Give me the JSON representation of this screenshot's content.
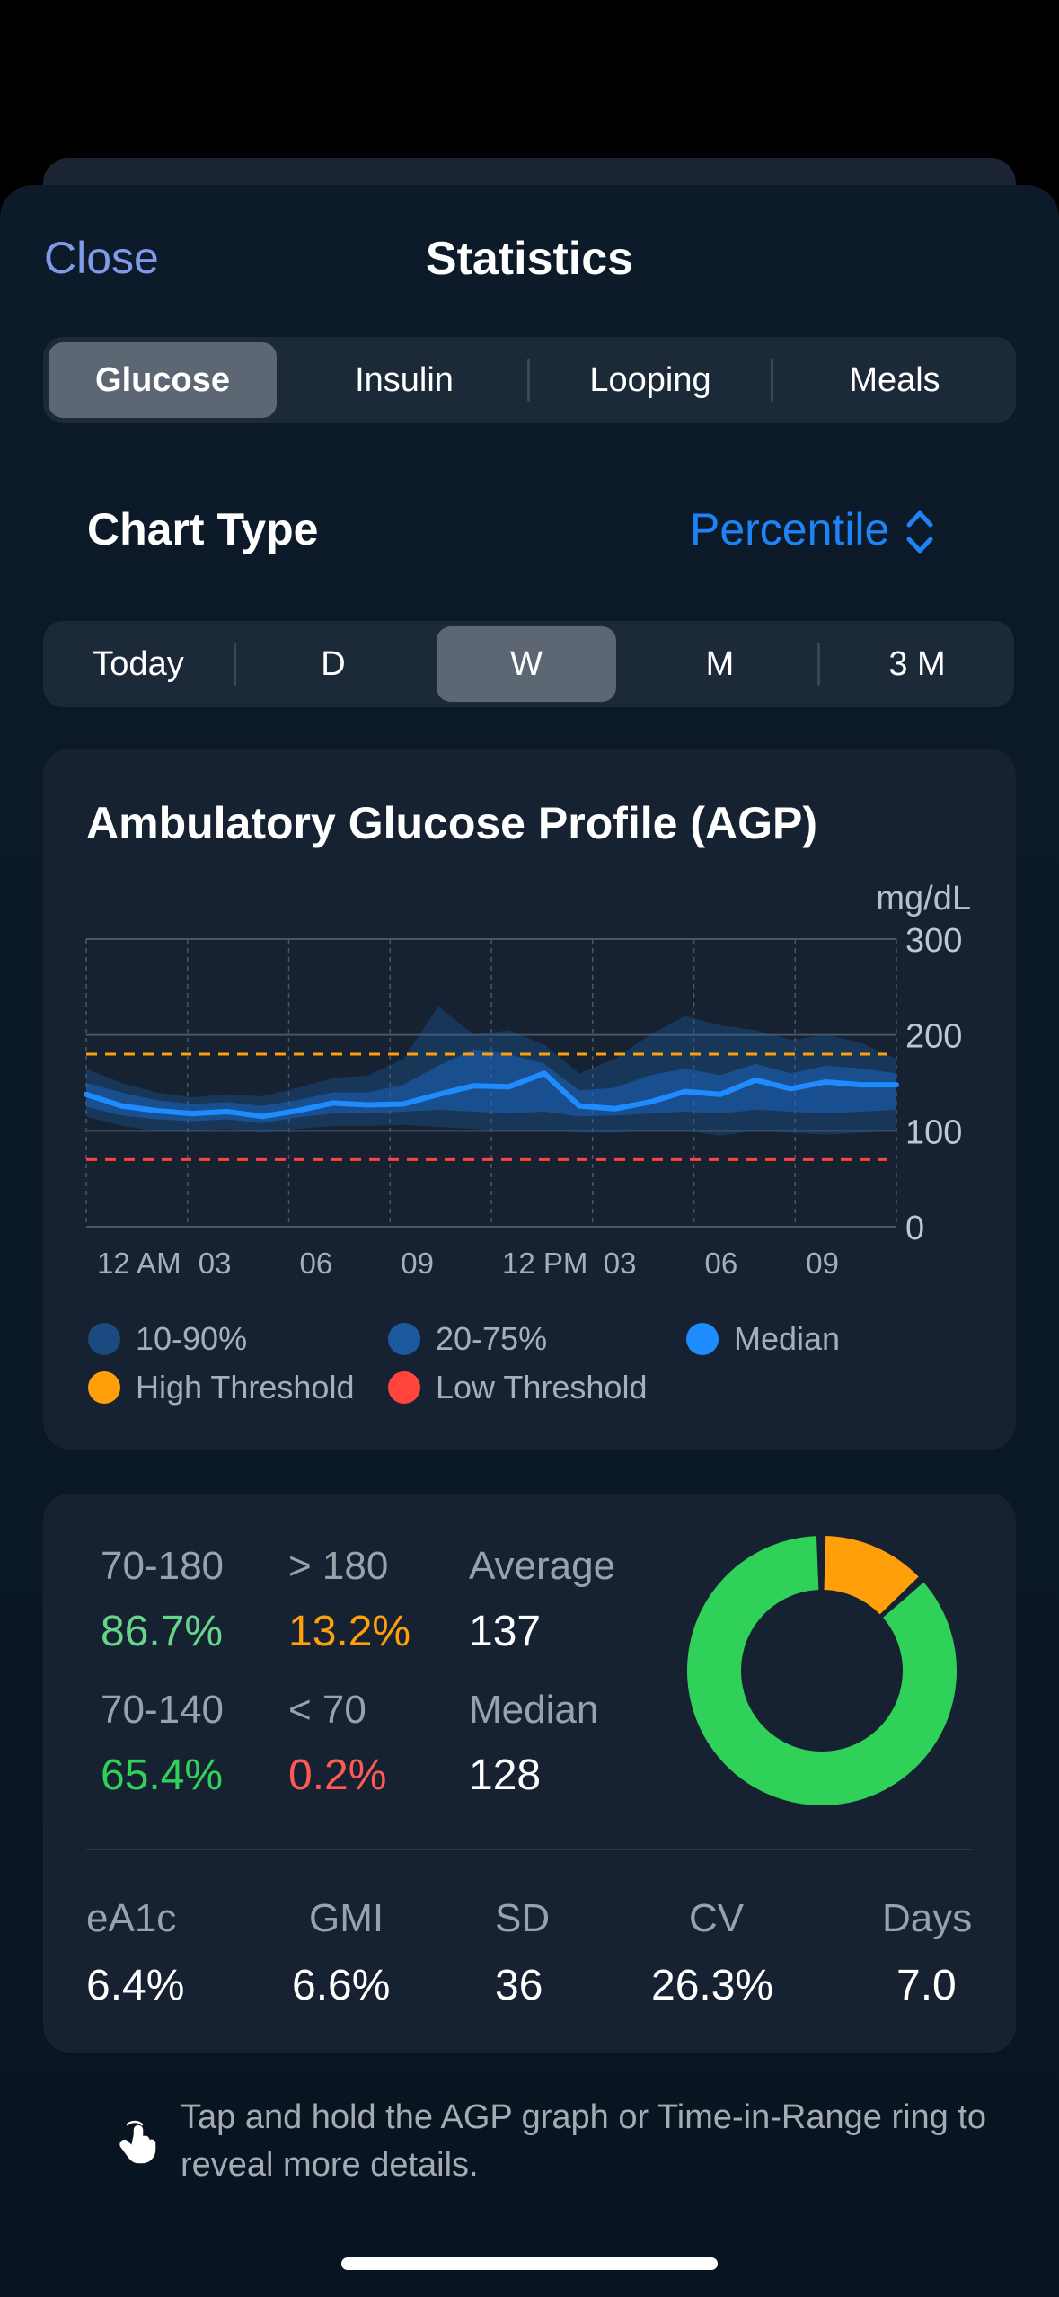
{
  "header": {
    "close_label": "Close",
    "title": "Statistics"
  },
  "tabs": [
    {
      "label": "Glucose",
      "selected": true
    },
    {
      "label": "Insulin",
      "selected": false
    },
    {
      "label": "Looping",
      "selected": false
    },
    {
      "label": "Meals",
      "selected": false
    }
  ],
  "chart_type": {
    "label": "Chart Type",
    "value": "Percentile",
    "icon": "chevron-up-down-icon"
  },
  "ranges": [
    {
      "label": "Today",
      "selected": false
    },
    {
      "label": "D",
      "selected": false
    },
    {
      "label": "W",
      "selected": true
    },
    {
      "label": "M",
      "selected": false
    },
    {
      "label": "3 M",
      "selected": false
    }
  ],
  "agp": {
    "title": "Ambulatory Glucose Profile (AGP)",
    "unit": "mg/dL",
    "legend": [
      {
        "label": "10-90%",
        "color": "#1b4a80"
      },
      {
        "label": "20-75%",
        "color": "#1c5aa0"
      },
      {
        "label": "Median",
        "color": "#1e8cff"
      },
      {
        "label": "High Threshold",
        "color": "#ff9f0a"
      },
      {
        "label": "Low Threshold",
        "color": "#ff453a"
      }
    ]
  },
  "chart_data": {
    "type": "line",
    "ylabel": "mg/dL",
    "ylim": [
      0,
      300
    ],
    "yticks": [
      "300",
      "200",
      "100",
      "0"
    ],
    "xticks": [
      "12 AM",
      "03",
      "06",
      "09",
      "12 PM",
      "03",
      "06",
      "09"
    ],
    "x_hours": [
      0,
      1,
      2,
      3,
      4,
      5,
      6,
      7,
      8,
      9,
      10,
      11,
      12,
      13,
      14,
      15,
      16,
      17,
      18,
      19,
      20,
      21,
      22,
      23
    ],
    "thresholds": {
      "high": 180,
      "low": 70
    },
    "series": [
      {
        "name": "Median",
        "values": [
          138,
          126,
          121,
          118,
          120,
          115,
          121,
          129,
          127,
          128,
          138,
          147,
          146,
          160,
          126,
          123,
          130,
          141,
          138,
          153,
          144,
          151,
          148,
          148
        ]
      },
      {
        "name": "20-75%",
        "lower": [
          125,
          116,
          112,
          110,
          112,
          108,
          114,
          118,
          118,
          120,
          122,
          120,
          118,
          120,
          115,
          116,
          118,
          120,
          118,
          122,
          120,
          118,
          120,
          122
        ],
        "upper": [
          150,
          140,
          132,
          128,
          130,
          126,
          132,
          140,
          140,
          148,
          168,
          185,
          180,
          170,
          142,
          145,
          158,
          165,
          158,
          170,
          160,
          168,
          165,
          160
        ]
      },
      {
        "name": "10-90%",
        "lower": [
          115,
          105,
          100,
          100,
          102,
          98,
          102,
          105,
          105,
          106,
          104,
          102,
          100,
          100,
          98,
          98,
          100,
          100,
          95,
          100,
          98,
          96,
          98,
          100
        ],
        "upper": [
          165,
          150,
          140,
          135,
          138,
          136,
          145,
          155,
          158,
          175,
          230,
          200,
          205,
          190,
          160,
          175,
          200,
          220,
          210,
          205,
          195,
          200,
          192,
          175
        ]
      }
    ]
  },
  "tir": {
    "rows": [
      {
        "label": "70-180",
        "value": "86.7%",
        "color": "#66d48a"
      },
      {
        "label": "> 180",
        "value": "13.2%",
        "color": "#ff9f0a"
      },
      {
        "label": "Average",
        "value": "137",
        "color": "#ffffff"
      },
      {
        "label": "70-140",
        "value": "65.4%",
        "color": "#30d158"
      },
      {
        "label": "< 70",
        "value": "0.2%",
        "color": "#ff5a52"
      },
      {
        "label": "Median",
        "value": "128",
        "color": "#ffffff"
      }
    ],
    "ring": [
      {
        "name": "70-180",
        "percent": 86.7,
        "color": "#30d158"
      },
      {
        "name": "> 180",
        "percent": 13.2,
        "color": "#ff9f0a"
      },
      {
        "name": "< 70",
        "percent": 0.2,
        "color": "#ff453a"
      }
    ]
  },
  "metrics": [
    {
      "label": "eA1c",
      "value": "6.4%"
    },
    {
      "label": "GMI",
      "value": "6.6%"
    },
    {
      "label": "SD",
      "value": "36"
    },
    {
      "label": "CV",
      "value": "26.3%"
    },
    {
      "label": "Days",
      "value": "7.0"
    }
  ],
  "hint": {
    "text": "Tap and hold the AGP graph or Time-in-Range ring to reveal more details.",
    "icon": "hand-tap-icon"
  }
}
